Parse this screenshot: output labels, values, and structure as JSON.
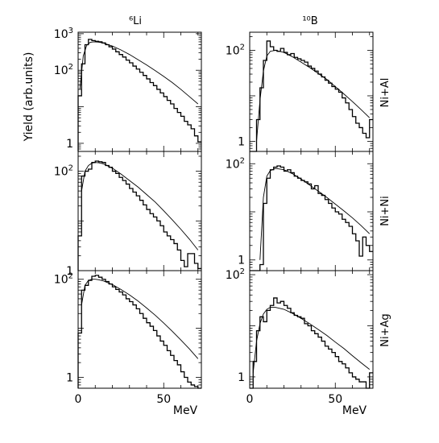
{
  "figure": {
    "ylabel": "Yield (arb.units)",
    "xlabel": "MeV"
  },
  "chart_data": [
    {
      "type": "line",
      "column_title": "⁶Li",
      "row_label": "Ni+Al",
      "yscale": "log",
      "xlim": [
        0,
        72
      ],
      "ylim": [
        0.6,
        1100
      ],
      "xticks": [
        "0",
        "50"
      ],
      "yticks": [
        "10^3",
        "10^2",
        "1"
      ],
      "histogram": {
        "x": [
          0,
          2,
          4,
          6,
          8,
          10,
          12,
          14,
          16,
          18,
          20,
          22,
          24,
          26,
          28,
          30,
          32,
          34,
          36,
          38,
          40,
          42,
          44,
          46,
          48,
          50,
          52,
          54,
          56,
          58,
          60,
          62,
          64,
          66,
          68,
          70
        ],
        "y": [
          20,
          150,
          500,
          700,
          650,
          620,
          600,
          560,
          500,
          440,
          380,
          320,
          270,
          230,
          190,
          160,
          130,
          108,
          88,
          72,
          58,
          46,
          38,
          30,
          24,
          19,
          15,
          12,
          9,
          7,
          5.5,
          4,
          3.2,
          2.5,
          1.6,
          1.1
        ]
      },
      "fit": {
        "x": [
          1,
          3,
          5,
          7,
          9,
          12,
          15,
          20,
          25,
          30,
          35,
          40,
          45,
          50,
          55,
          60,
          65,
          70
        ],
        "y": [
          30,
          250,
          480,
          580,
          600,
          590,
          550,
          460,
          360,
          270,
          195,
          140,
          98,
          68,
          46,
          30,
          19,
          12
        ]
      }
    },
    {
      "type": "line",
      "column_title": "¹⁰B",
      "row_label": "Ni+Al",
      "yscale": "log",
      "xlim": [
        0,
        72
      ],
      "ylim": [
        0.6,
        250
      ],
      "xticks": [
        "0",
        "50"
      ],
      "yticks": [
        "10^2",
        "1"
      ],
      "histogram": {
        "x": [
          0,
          2,
          4,
          6,
          8,
          10,
          12,
          14,
          16,
          18,
          20,
          22,
          24,
          26,
          28,
          30,
          32,
          34,
          36,
          38,
          40,
          42,
          44,
          46,
          48,
          50,
          52,
          54,
          56,
          58,
          60,
          62,
          64,
          66,
          68,
          70
        ],
        "y": [
          0.5,
          0.5,
          3,
          15,
          60,
          160,
          120,
          100,
          95,
          110,
          90,
          80,
          85,
          70,
          65,
          60,
          55,
          45,
          40,
          35,
          30,
          26,
          22,
          19,
          16,
          14,
          12,
          9,
          7,
          5,
          3.5,
          2.5,
          2,
          1.5,
          1.2,
          3
        ]
      },
      "fit": {
        "x": [
          4,
          6,
          8,
          10,
          12,
          15,
          20,
          25,
          30,
          35,
          40,
          45,
          50,
          55,
          60,
          65,
          70
        ],
        "y": [
          1,
          8,
          35,
          75,
          95,
          100,
          90,
          72,
          55,
          42,
          31,
          23,
          16,
          11,
          7.5,
          5,
          3.3
        ]
      }
    },
    {
      "type": "line",
      "column_title": "⁶Li",
      "row_label": "Ni+Ni",
      "yscale": "log",
      "xlim": [
        0,
        72
      ],
      "ylim": [
        1,
        250
      ],
      "xticks": [
        "0",
        "50"
      ],
      "yticks": [
        "10^2",
        "1"
      ],
      "histogram": {
        "x": [
          0,
          2,
          4,
          6,
          8,
          10,
          12,
          14,
          16,
          18,
          20,
          22,
          24,
          26,
          28,
          30,
          32,
          34,
          36,
          38,
          40,
          42,
          44,
          46,
          48,
          50,
          52,
          54,
          56,
          58,
          60,
          62,
          64,
          66,
          68,
          70
        ],
        "y": [
          5,
          80,
          100,
          110,
          150,
          160,
          155,
          150,
          130,
          120,
          100,
          90,
          75,
          65,
          55,
          45,
          38,
          32,
          26,
          21,
          17,
          14,
          12,
          10,
          8,
          6,
          5,
          4.2,
          3.5,
          2.6,
          1.6,
          1.2,
          2.2,
          2.2,
          1.4,
          1.1
        ]
      },
      "fit": {
        "x": [
          2,
          4,
          6,
          8,
          10,
          12,
          15,
          20,
          25,
          30,
          35,
          40,
          45,
          50,
          55,
          60,
          65,
          70
        ],
        "y": [
          40,
          100,
          130,
          145,
          150,
          148,
          140,
          115,
          88,
          65,
          48,
          34,
          24,
          16,
          10.5,
          6.8,
          4.3,
          2.6
        ]
      }
    },
    {
      "type": "line",
      "column_title": "¹⁰B",
      "row_label": "Ni+Ni",
      "yscale": "log",
      "xlim": [
        0,
        72
      ],
      "ylim": [
        0.6,
        180
      ],
      "xticks": [
        "0",
        "50"
      ],
      "yticks": [
        "10^2",
        "1"
      ],
      "histogram": {
        "x": [
          0,
          2,
          4,
          6,
          8,
          10,
          12,
          14,
          16,
          18,
          20,
          22,
          24,
          26,
          28,
          30,
          32,
          34,
          36,
          38,
          40,
          42,
          44,
          46,
          48,
          50,
          52,
          54,
          56,
          58,
          60,
          62,
          64,
          66,
          68,
          70
        ],
        "y": [
          0.5,
          0.5,
          0.5,
          0.8,
          15,
          50,
          75,
          85,
          90,
          85,
          70,
          75,
          65,
          55,
          50,
          45,
          42,
          38,
          30,
          35,
          24,
          22,
          18,
          15,
          12,
          10,
          9,
          7,
          6,
          5,
          3.5,
          2.5,
          1.2,
          3,
          2,
          1.5
        ]
      },
      "fit": {
        "x": [
          6,
          8,
          10,
          12,
          15,
          20,
          25,
          30,
          35,
          40,
          45,
          50,
          55,
          60,
          65,
          70
        ],
        "y": [
          1,
          20,
          55,
          72,
          80,
          75,
          62,
          48,
          36,
          27,
          20,
          14.5,
          10.5,
          7.5,
          5.2,
          3.5
        ]
      }
    },
    {
      "type": "line",
      "column_title": "⁶Li",
      "row_label": "Ni+Ag",
      "yscale": "log",
      "xlim": [
        0,
        72
      ],
      "ylim": [
        0.6,
        150
      ],
      "xticks": [
        "0",
        "50"
      ],
      "yticks": [
        "10^2",
        "1"
      ],
      "histogram": {
        "x": [
          0,
          2,
          4,
          6,
          8,
          10,
          12,
          14,
          16,
          18,
          20,
          22,
          24,
          26,
          28,
          30,
          32,
          34,
          36,
          38,
          40,
          42,
          44,
          46,
          48,
          50,
          52,
          54,
          56,
          58,
          60,
          62,
          64,
          66,
          68,
          70
        ],
        "y": [
          8,
          60,
          75,
          95,
          115,
          120,
          110,
          100,
          90,
          80,
          70,
          62,
          55,
          48,
          40,
          35,
          30,
          25,
          20,
          16,
          13,
          11,
          9,
          7,
          5.5,
          4.5,
          3.5,
          2.8,
          2.2,
          1.8,
          1.3,
          1.0,
          0.8,
          0.7,
          0.65,
          0.6
        ]
      },
      "fit": {
        "x": [
          2,
          4,
          6,
          8,
          10,
          12,
          15,
          20,
          25,
          30,
          35,
          40,
          45,
          50,
          55,
          60,
          65,
          70
        ],
        "y": [
          30,
          75,
          95,
          100,
          100,
          98,
          92,
          78,
          62,
          48,
          36,
          26,
          18.5,
          12.8,
          8.7,
          5.8,
          3.8,
          2.4
        ]
      }
    },
    {
      "type": "line",
      "column_title": "¹⁰B",
      "row_label": "Ni+Ag",
      "yscale": "log",
      "xlim": [
        0,
        72
      ],
      "ylim": [
        0.6,
        120
      ],
      "xticks": [
        "0",
        "50"
      ],
      "yticks": [
        "10^2",
        "1"
      ],
      "histogram": {
        "x": [
          0,
          2,
          4,
          6,
          8,
          10,
          12,
          14,
          16,
          18,
          20,
          22,
          24,
          26,
          28,
          30,
          32,
          34,
          36,
          38,
          40,
          42,
          44,
          46,
          48,
          50,
          52,
          54,
          56,
          58,
          60,
          62,
          64,
          66,
          68,
          70
        ],
        "y": [
          0.5,
          2,
          8,
          15,
          12,
          20,
          25,
          35,
          28,
          30,
          25,
          22,
          18,
          16,
          15,
          14,
          11,
          10,
          8,
          7,
          6,
          5,
          4,
          3.5,
          3,
          2.5,
          2,
          1.8,
          1.5,
          1.2,
          1,
          0.9,
          0.8,
          0.8,
          0.6,
          1.2
        ]
      },
      "fit": {
        "x": [
          2,
          4,
          6,
          8,
          10,
          12,
          15,
          20,
          25,
          30,
          35,
          40,
          45,
          50,
          55,
          60,
          65,
          70
        ],
        "y": [
          1.2,
          5,
          11,
          17,
          21,
          23,
          23,
          21,
          17.5,
          14,
          11,
          8.5,
          6.5,
          4.8,
          3.6,
          2.6,
          1.9,
          1.4
        ]
      }
    }
  ]
}
